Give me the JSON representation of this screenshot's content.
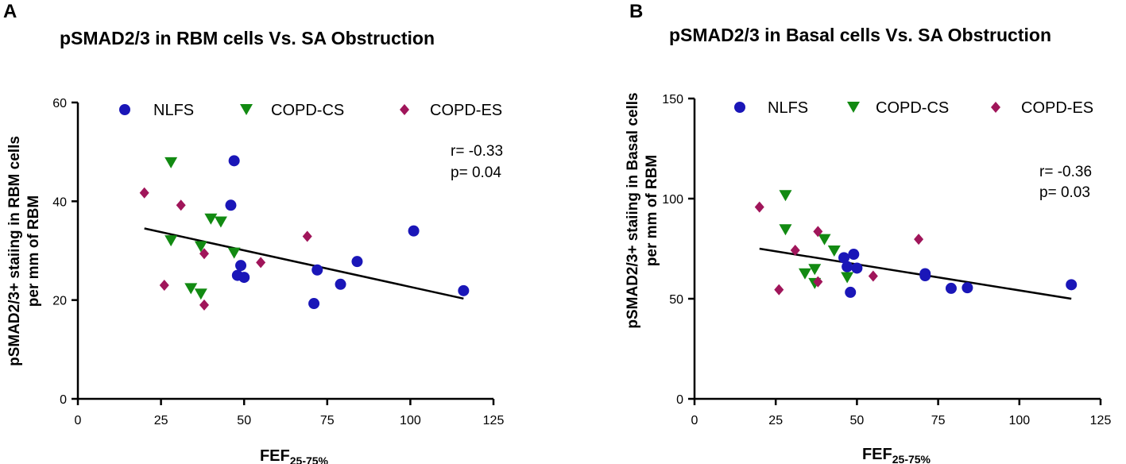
{
  "chart_data": [
    {
      "type": "scatter",
      "panel_label": "A",
      "title": "pSMAD2/3 in RBM cells Vs. SA Obstruction",
      "xlabel_main": "FEF",
      "xlabel_sub": "25-75%",
      "ylabel_line1": "pSMAD2/3+ staiing in RBM cells",
      "ylabel_line2": "per mm of RBM",
      "xlim": [
        0,
        125
      ],
      "ylim": [
        0,
        60
      ],
      "x_ticks": [
        0,
        25,
        50,
        75,
        100,
        125
      ],
      "y_ticks": [
        0,
        20,
        40,
        60
      ],
      "legend_position": "top",
      "stats": {
        "r": "r= -0.33",
        "p": "p= 0.04"
      },
      "fit_line": {
        "x": [
          20,
          116
        ],
        "y": [
          34.5,
          20.3
        ]
      },
      "series": [
        {
          "name": "NLFS",
          "marker": "circle",
          "color": "#1a16b8",
          "points": [
            [
              47,
              48.2
            ],
            [
              46,
              39.2
            ],
            [
              49,
              27.0
            ],
            [
              48,
              25.0
            ],
            [
              50,
              24.6
            ],
            [
              71,
              19.3
            ],
            [
              72,
              26.1
            ],
            [
              79,
              23.2
            ],
            [
              84,
              27.8
            ],
            [
              101,
              34.0
            ],
            [
              116,
              21.9
            ]
          ]
        },
        {
          "name": "COPD-CS",
          "marker": "triangle-down",
          "color": "#128a12",
          "points": [
            [
              28,
              47.8
            ],
            [
              40,
              36.4
            ],
            [
              43,
              35.8
            ],
            [
              28,
              32.0
            ],
            [
              37,
              30.8
            ],
            [
              47,
              29.5
            ],
            [
              34,
              22.3
            ],
            [
              37,
              21.2
            ]
          ]
        },
        {
          "name": "COPD-ES",
          "marker": "diamond",
          "color": "#a0155a",
          "points": [
            [
              20,
              41.7
            ],
            [
              31,
              39.2
            ],
            [
              69,
              32.9
            ],
            [
              38,
              29.4
            ],
            [
              55,
              27.6
            ],
            [
              26,
              23.0
            ],
            [
              38,
              19.0
            ]
          ]
        }
      ]
    },
    {
      "type": "scatter",
      "panel_label": "B",
      "title": "pSMAD2/3 in Basal cells Vs. SA Obstruction",
      "xlabel_main": "FEF",
      "xlabel_sub": "25-75%",
      "ylabel_line1": "pSMAD2/3+ staiing in Basal cells",
      "ylabel_line2": "per mm of RBM",
      "xlim": [
        0,
        125
      ],
      "ylim": [
        0,
        150
      ],
      "x_ticks": [
        0,
        25,
        50,
        75,
        100,
        125
      ],
      "y_ticks": [
        0,
        50,
        100,
        150
      ],
      "legend_position": "top",
      "stats": {
        "r": "r= -0.36",
        "p": "p= 0.03"
      },
      "fit_line": {
        "x": [
          20,
          116
        ],
        "y": [
          75.0,
          50.0
        ]
      },
      "series": [
        {
          "name": "NLFS",
          "marker": "circle",
          "color": "#1a16b8",
          "points": [
            [
              46,
              70.5
            ],
            [
              49,
              72.2
            ],
            [
              47,
              66.0
            ],
            [
              50,
              65.3
            ],
            [
              48,
              53.2
            ],
            [
              71,
              62.5
            ],
            [
              71,
              61.5
            ],
            [
              79,
              55.2
            ],
            [
              84,
              55.5
            ],
            [
              116,
              57.0
            ]
          ]
        },
        {
          "name": "COPD-CS",
          "marker": "triangle-down",
          "color": "#128a12",
          "points": [
            [
              28,
              101.5
            ],
            [
              28,
              84.4
            ],
            [
              40,
              79.5
            ],
            [
              43,
              73.8
            ],
            [
              37,
              64.6
            ],
            [
              34,
              62.4
            ],
            [
              47,
              60.5
            ],
            [
              37,
              57.6
            ]
          ]
        },
        {
          "name": "COPD-ES",
          "marker": "diamond",
          "color": "#a0155a",
          "points": [
            [
              20,
              95.8
            ],
            [
              38,
              83.6
            ],
            [
              69,
              79.7
            ],
            [
              31,
              74.2
            ],
            [
              55,
              61.3
            ],
            [
              38,
              58.5
            ],
            [
              26,
              54.5
            ]
          ]
        }
      ]
    }
  ]
}
